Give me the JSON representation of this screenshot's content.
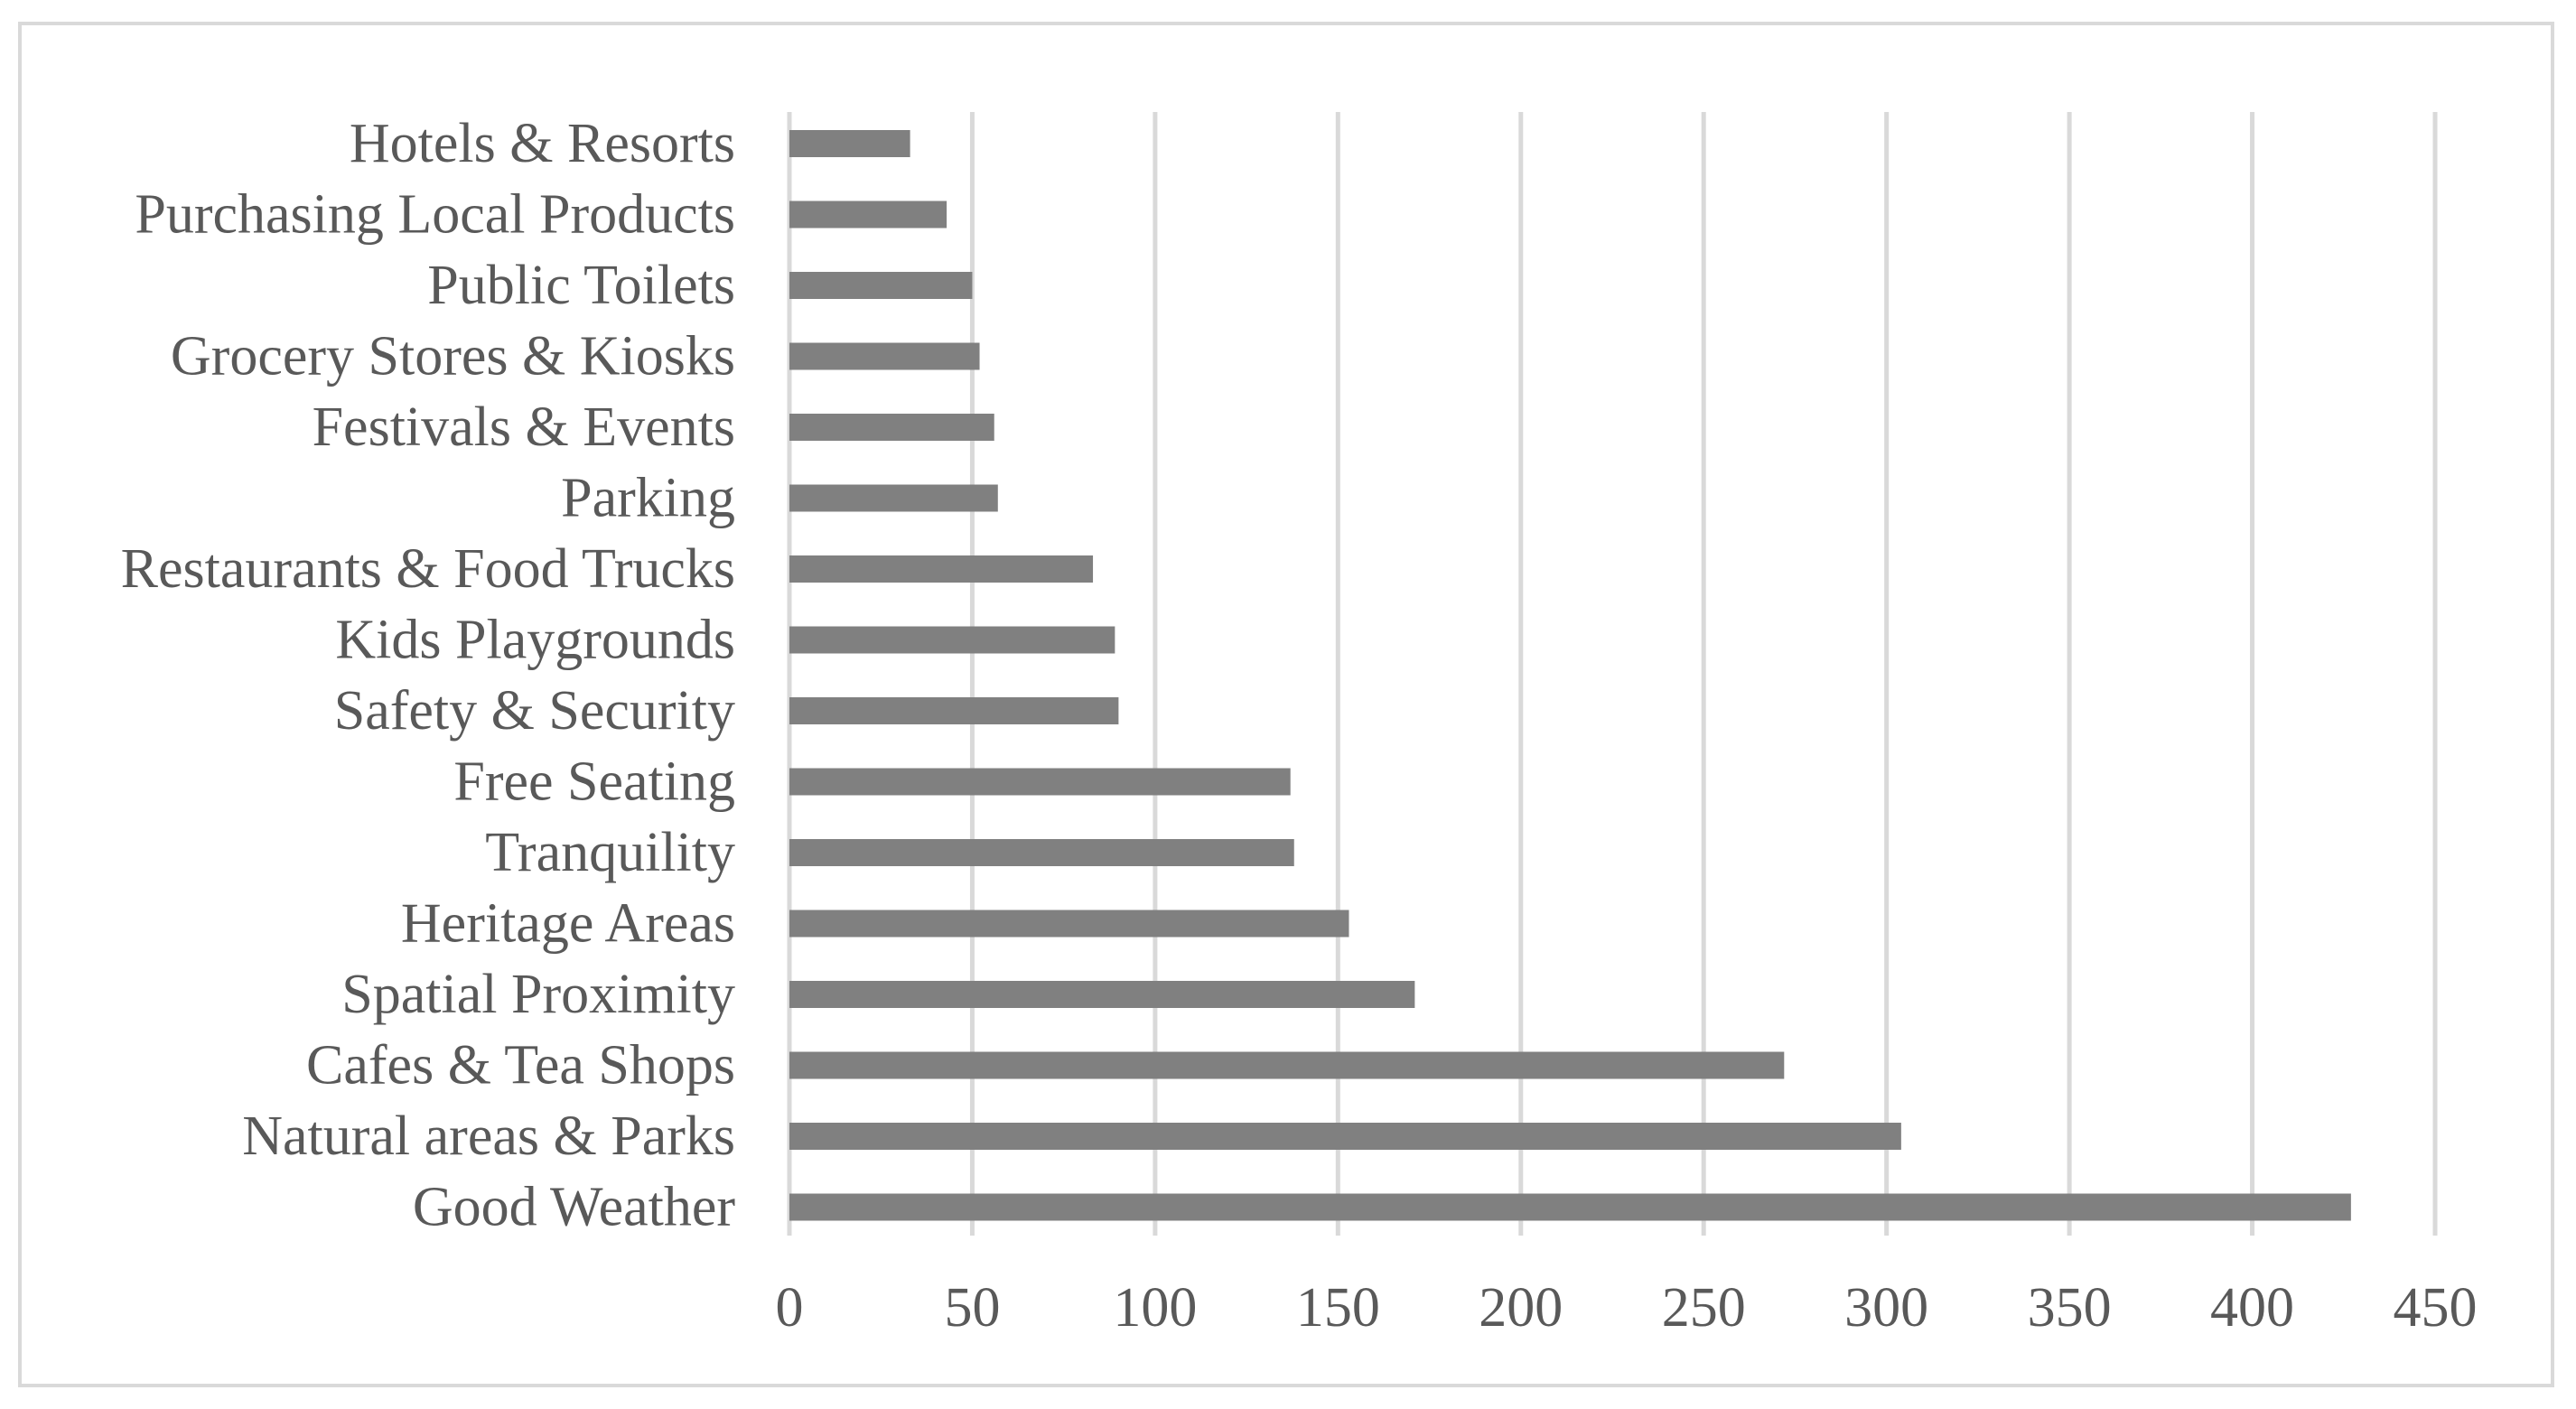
{
  "chart_data": {
    "type": "bar",
    "orientation": "horizontal",
    "title": "",
    "xlabel": "",
    "ylabel": "",
    "categories": [
      "Hotels & Resorts",
      "Purchasing Local Products",
      "Public Toilets",
      "Grocery Stores & Kiosks",
      "Festivals & Events",
      "Parking",
      "Restaurants & Food Trucks",
      "Kids Playgrounds",
      "Safety & Security",
      "Free Seating",
      "Tranquility",
      "Heritage Areas",
      "Spatial Proximity",
      "Cafes & Tea Shops",
      "Natural areas & Parks",
      "Good Weather"
    ],
    "values": [
      33,
      43,
      50,
      52,
      56,
      57,
      83,
      89,
      90,
      137,
      138,
      153,
      171,
      272,
      304,
      427
    ],
    "xlim": [
      0,
      450
    ],
    "xticks": [
      "0",
      "50",
      "100",
      "150",
      "200",
      "250",
      "300",
      "350",
      "400",
      "450"
    ],
    "grid": true,
    "legend": "none",
    "bar_color": "#808080",
    "grid_color": "#d9d9d9",
    "label_color": "#595959"
  }
}
